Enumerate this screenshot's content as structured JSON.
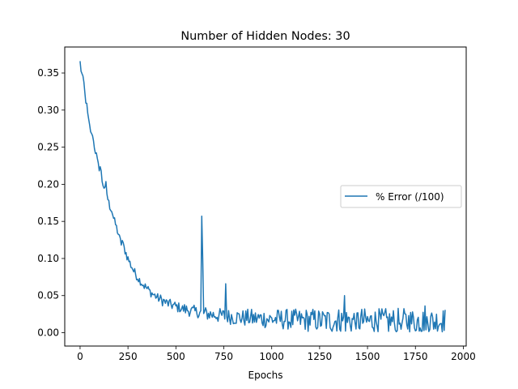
{
  "chart_data": {
    "type": "line",
    "title": "Number of Hidden Nodes: 30",
    "xlabel": "Epochs",
    "ylabel": "",
    "xlim": [
      -80,
      2015
    ],
    "ylim": [
      -0.018,
      0.385
    ],
    "xticks": [
      0,
      250,
      500,
      750,
      1000,
      1250,
      1500,
      1750,
      2000
    ],
    "xtick_labels": [
      "0",
      "250",
      "500",
      "750",
      "1000",
      "1250",
      "1500",
      "1750",
      "2000"
    ],
    "yticks": [
      0.0,
      0.05,
      0.1,
      0.15,
      0.2,
      0.25,
      0.3,
      0.35
    ],
    "ytick_labels": [
      "0.00",
      "0.05",
      "0.10",
      "0.15",
      "0.20",
      "0.25",
      "0.30",
      "0.35"
    ],
    "grid": false,
    "legend_position": "center-right",
    "series": [
      {
        "name": "% Error (/100)",
        "color": "#1f77b4",
        "x_start": 0,
        "x_step": 5,
        "values": [
          0.366,
          0.354,
          0.348,
          0.342,
          0.336,
          0.322,
          0.312,
          0.306,
          0.294,
          0.285,
          0.278,
          0.272,
          0.266,
          0.268,
          0.258,
          0.25,
          0.244,
          0.24,
          0.232,
          0.226,
          0.222,
          0.224,
          0.216,
          0.205,
          0.2,
          0.196,
          0.192,
          0.2,
          0.188,
          0.18,
          0.175,
          0.17,
          0.168,
          0.165,
          0.16,
          0.154,
          0.15,
          0.146,
          0.142,
          0.137,
          0.133,
          0.128,
          0.124,
          0.12,
          0.124,
          0.118,
          0.114,
          0.11,
          0.107,
          0.103,
          0.1,
          0.097,
          0.094,
          0.091,
          0.089,
          0.086,
          0.083,
          0.081,
          0.079,
          0.077,
          0.075,
          0.073,
          0.071,
          0.07,
          0.068,
          0.066,
          0.065,
          0.063,
          0.062,
          0.061,
          0.059,
          0.058,
          0.057,
          0.055,
          0.054,
          0.053,
          0.052,
          0.051,
          0.05,
          0.049,
          0.048,
          0.047,
          0.046,
          0.045,
          0.045,
          0.044,
          0.043,
          0.043,
          0.042,
          0.041,
          0.04,
          0.04,
          0.039,
          0.039,
          0.038,
          0.038,
          0.037,
          0.037,
          0.036,
          0.036,
          0.035,
          0.035,
          0.034,
          0.034,
          0.034,
          0.033,
          0.033,
          0.032,
          0.032,
          0.032,
          0.031,
          0.031,
          0.031,
          0.03,
          0.03,
          0.03,
          0.029,
          0.029,
          0.029,
          0.029,
          0.028,
          0.028,
          0.028,
          0.028,
          0.027,
          0.027,
          0.027,
          0.027,
          0.026,
          0.026,
          0.026,
          0.026,
          0.026,
          0.025,
          0.025,
          0.025,
          0.025,
          0.025,
          0.024,
          0.024,
          0.024,
          0.024,
          0.024,
          0.024,
          0.023,
          0.023,
          0.023,
          0.023,
          0.023,
          0.023,
          0.023,
          0.022,
          0.022,
          0.022,
          0.022,
          0.022,
          0.022,
          0.022,
          0.022,
          0.021,
          0.021,
          0.021,
          0.021,
          0.021,
          0.021,
          0.021,
          0.021,
          0.021,
          0.02,
          0.02,
          0.02,
          0.02,
          0.02,
          0.02,
          0.02,
          0.02,
          0.02,
          0.02,
          0.02,
          0.02,
          0.019,
          0.019,
          0.019,
          0.019,
          0.019,
          0.019,
          0.019,
          0.019,
          0.019,
          0.019,
          0.019,
          0.019,
          0.019,
          0.019,
          0.019,
          0.019,
          0.018,
          0.018,
          0.018,
          0.018,
          0.018,
          0.018,
          0.018,
          0.018,
          0.018,
          0.018,
          0.018,
          0.018,
          0.018,
          0.018,
          0.018,
          0.018,
          0.018,
          0.018,
          0.018,
          0.018,
          0.018,
          0.018,
          0.017,
          0.017,
          0.017,
          0.017,
          0.017,
          0.017,
          0.017,
          0.017,
          0.017,
          0.017,
          0.017,
          0.017,
          0.017,
          0.017,
          0.017,
          0.017,
          0.017,
          0.017,
          0.017,
          0.017,
          0.017,
          0.017,
          0.017,
          0.017,
          0.017,
          0.017,
          0.017,
          0.017,
          0.017,
          0.017,
          0.016,
          0.016,
          0.016,
          0.016,
          0.016,
          0.016,
          0.016,
          0.016,
          0.016,
          0.016,
          0.016,
          0.016,
          0.016,
          0.016,
          0.016,
          0.016,
          0.016,
          0.016,
          0.016,
          0.016,
          0.016,
          0.016,
          0.016,
          0.016,
          0.016,
          0.016,
          0.016,
          0.016,
          0.016,
          0.016,
          0.016,
          0.016,
          0.016,
          0.016,
          0.016,
          0.016,
          0.016,
          0.016,
          0.016,
          0.016,
          0.016,
          0.016,
          0.016,
          0.016,
          0.016,
          0.016,
          0.016,
          0.016,
          0.016,
          0.015,
          0.015,
          0.015,
          0.015,
          0.015,
          0.015,
          0.015,
          0.015,
          0.015,
          0.015,
          0.015,
          0.015,
          0.015,
          0.015,
          0.015,
          0.015,
          0.015,
          0.015,
          0.015,
          0.015,
          0.015,
          0.015,
          0.015,
          0.015,
          0.015,
          0.015,
          0.015,
          0.015,
          0.015,
          0.015,
          0.015,
          0.015,
          0.015,
          0.015,
          0.015,
          0.015,
          0.015,
          0.015,
          0.015,
          0.015,
          0.015,
          0.015,
          0.015,
          0.015,
          0.015,
          0.015,
          0.015,
          0.015,
          0.015,
          0.015,
          0.015,
          0.015,
          0.015,
          0.015,
          0.015,
          0.015,
          0.015,
          0.015,
          0.015,
          0.015,
          0.015,
          0.015,
          0.015,
          0.015,
          0.015,
          0.015,
          0.015,
          0.015,
          0.015,
          0.015,
          0.015,
          0.015,
          0.015,
          0.015,
          0.015,
          0.015,
          0.015,
          0.015,
          0.015,
          0.015,
          0.015,
          0.015,
          0.015,
          0.015,
          0.015
        ],
        "noise_amplitude": [
          0.004,
          0.004,
          0.004,
          0.004,
          0.004,
          0.005,
          0.005,
          0.005,
          0.005,
          0.005,
          0.005,
          0.005,
          0.006,
          0.006,
          0.006,
          0.006,
          0.006,
          0.006,
          0.006,
          0.006,
          0.006,
          0.007,
          0.007,
          0.007,
          0.007,
          0.007,
          0.007,
          0.008,
          0.008,
          0.008,
          0.008,
          0.009,
          0.009,
          0.009,
          0.009,
          0.01,
          0.01,
          0.01,
          0.01,
          0.011,
          0.011,
          0.011,
          0.011,
          0.012,
          0.012,
          0.012,
          0.012,
          0.013,
          0.013,
          0.013,
          0.013,
          0.014,
          0.014,
          0.014,
          0.014,
          0.015,
          0.015,
          0.015,
          0.015,
          0.016,
          0.016,
          0.016,
          0.016,
          0.017,
          0.017,
          0.017,
          0.017,
          0.018,
          0.018,
          0.018,
          0.018,
          0.018,
          0.018,
          0.018,
          0.018,
          0.018,
          0.018,
          0.018,
          0.018,
          0.018,
          0.018,
          0.018,
          0.018,
          0.018,
          0.018,
          0.018,
          0.018,
          0.018,
          0.018,
          0.018,
          0.018,
          0.018,
          0.018,
          0.018,
          0.018,
          0.018,
          0.018,
          0.018,
          0.018,
          0.018
        ],
        "spikes": [
          {
            "x": 635,
            "y": 0.157
          },
          {
            "x": 640,
            "y": 0.1
          },
          {
            "x": 760,
            "y": 0.066
          },
          {
            "x": 1380,
            "y": 0.05
          },
          {
            "x": 1800,
            "y": 0.036
          }
        ]
      }
    ]
  }
}
